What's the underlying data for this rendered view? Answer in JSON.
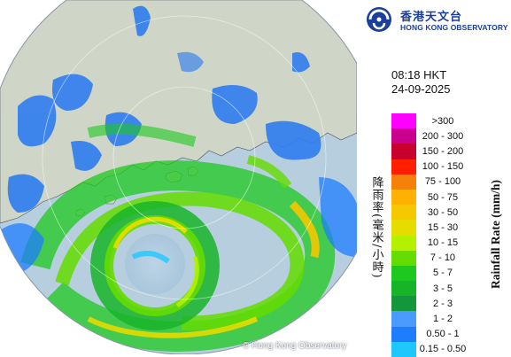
{
  "logo": {
    "name_zh": "香港天文台",
    "name_en": "HONG KONG OBSERVATORY",
    "brand_color": "#1b3f9a",
    "icon": "hko-emblem-icon"
  },
  "timestamp": {
    "time": "08:18 HKT",
    "date": "24-09-2025"
  },
  "legend": {
    "title_zh": "降雨率(毫米/小時)",
    "title_en": "Rainfall Rate (mm/h)",
    "items": [
      {
        "label": ">300",
        "color": "#ff00ff"
      },
      {
        "label": "200 - 300",
        "color": "#c8008c"
      },
      {
        "label": "150 - 200",
        "color": "#c8002d"
      },
      {
        "label": "100 - 150",
        "color": "#ff1e00"
      },
      {
        "label": "75 - 100",
        "color": "#f5800a"
      },
      {
        "label": "50 - 75",
        "color": "#ffb000"
      },
      {
        "label": "30 - 50",
        "color": "#f5c800"
      },
      {
        "label": "15 - 30",
        "color": "#e6dc00"
      },
      {
        "label": "10 - 15",
        "color": "#b4f000"
      },
      {
        "label": "7 - 10",
        "color": "#64dc00"
      },
      {
        "label": "5 - 7",
        "color": "#1ec81e"
      },
      {
        "label": "3 - 5",
        "color": "#18b428"
      },
      {
        "label": "2 - 3",
        "color": "#14963c"
      },
      {
        "label": "1 - 2",
        "color": "#4b9bff"
      },
      {
        "label": "0.50 - 1",
        "color": "#1e7dff"
      },
      {
        "label": "0.15 - 0.50",
        "color": "#1ec8ff"
      }
    ]
  },
  "map": {
    "copyright": "© Hong Kong Observatory",
    "sea_color": "#b7cedf",
    "land_color": "#cfd6c7",
    "outside_color": "#ffffff"
  }
}
